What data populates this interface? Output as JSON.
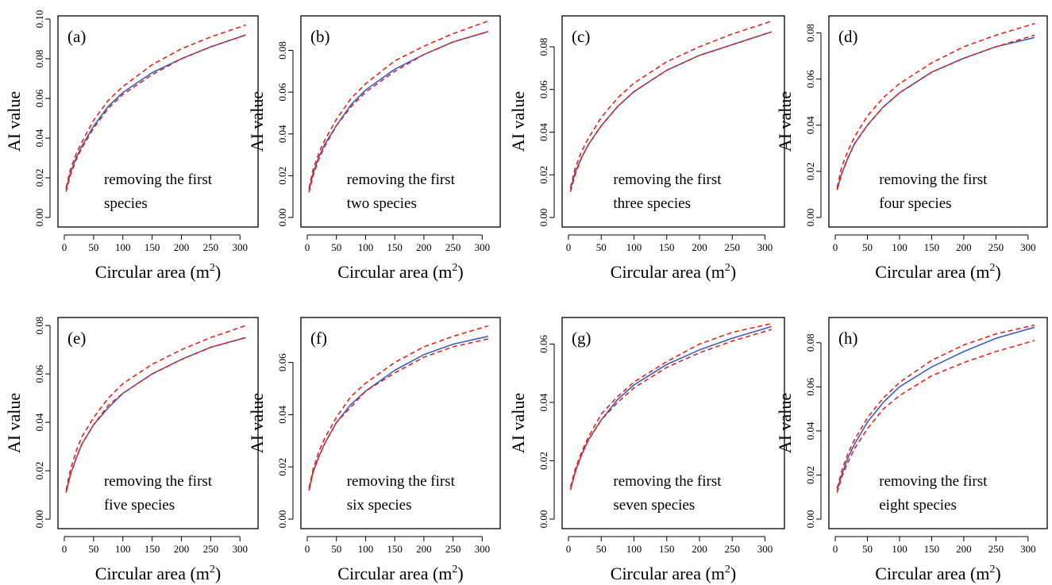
{
  "figure": {
    "xlabel": "Circular area (m",
    "xlabel_sup": "2",
    "xlabel_close": ")",
    "ylabel": "AI value"
  },
  "chart_data": [
    {
      "type": "line",
      "panel_label": "(a)",
      "annotation": [
        "removing the first",
        "species"
      ],
      "xlim": [
        0,
        320
      ],
      "ylim": [
        0,
        0.1
      ],
      "xticks": [
        0,
        50,
        100,
        150,
        200,
        250,
        300
      ],
      "yticks": [
        0,
        0.02,
        0.04,
        0.06,
        0.08,
        0.1
      ],
      "ytick_labels": [
        "0.00",
        "0.02",
        "0.04",
        "0.06",
        "0.08",
        "0.10"
      ],
      "x": [
        3,
        10,
        20,
        30,
        50,
        75,
        100,
        150,
        200,
        250,
        310
      ],
      "series": [
        {
          "color": "#3b5fc0",
          "style": "solid",
          "values": [
            0.014,
            0.022,
            0.03,
            0.036,
            0.046,
            0.056,
            0.063,
            0.073,
            0.08,
            0.086,
            0.092
          ]
        },
        {
          "color": "#e8231b",
          "style": "dashed",
          "values": [
            0.015,
            0.024,
            0.032,
            0.038,
            0.049,
            0.059,
            0.066,
            0.077,
            0.085,
            0.091,
            0.097
          ]
        },
        {
          "color": "#e8231b",
          "style": "dashed",
          "values": [
            0.013,
            0.021,
            0.029,
            0.035,
            0.045,
            0.055,
            0.062,
            0.072,
            0.08,
            0.086,
            0.092
          ]
        }
      ]
    },
    {
      "type": "line",
      "panel_label": "(b)",
      "annotation": [
        "removing the first",
        "two species"
      ],
      "xlim": [
        0,
        320
      ],
      "ylim": [
        0,
        0.095
      ],
      "xticks": [
        0,
        50,
        100,
        150,
        200,
        250,
        300
      ],
      "yticks": [
        0,
        0.02,
        0.04,
        0.06,
        0.08
      ],
      "ytick_labels": [
        "0.00",
        "0.02",
        "0.04",
        "0.06",
        "0.08"
      ],
      "x": [
        3,
        10,
        20,
        30,
        50,
        75,
        100,
        150,
        200,
        250,
        310
      ],
      "series": [
        {
          "color": "#3b5fc0",
          "style": "solid",
          "values": [
            0.013,
            0.021,
            0.029,
            0.035,
            0.044,
            0.054,
            0.061,
            0.071,
            0.078,
            0.084,
            0.089
          ]
        },
        {
          "color": "#e8231b",
          "style": "dashed",
          "values": [
            0.014,
            0.023,
            0.031,
            0.037,
            0.047,
            0.057,
            0.064,
            0.075,
            0.082,
            0.088,
            0.094
          ]
        },
        {
          "color": "#e8231b",
          "style": "dashed",
          "values": [
            0.012,
            0.02,
            0.028,
            0.034,
            0.044,
            0.053,
            0.06,
            0.07,
            0.078,
            0.084,
            0.089
          ]
        }
      ]
    },
    {
      "type": "line",
      "panel_label": "(c)",
      "annotation": [
        "removing the first",
        "three species"
      ],
      "xlim": [
        0,
        320
      ],
      "ylim": [
        0,
        0.093
      ],
      "xticks": [
        0,
        50,
        100,
        150,
        200,
        250,
        300
      ],
      "yticks": [
        0,
        0.02,
        0.04,
        0.06,
        0.08
      ],
      "ytick_labels": [
        "0.00",
        "0.02",
        "0.04",
        "0.06",
        "0.08"
      ],
      "x": [
        3,
        10,
        20,
        30,
        50,
        75,
        100,
        150,
        200,
        250,
        310
      ],
      "series": [
        {
          "color": "#3b5fc0",
          "style": "solid",
          "values": [
            0.013,
            0.021,
            0.028,
            0.034,
            0.043,
            0.052,
            0.059,
            0.069,
            0.076,
            0.081,
            0.087
          ]
        },
        {
          "color": "#e8231b",
          "style": "dashed",
          "values": [
            0.014,
            0.023,
            0.031,
            0.037,
            0.047,
            0.056,
            0.063,
            0.073,
            0.08,
            0.086,
            0.092
          ]
        },
        {
          "color": "#e8231b",
          "style": "dashed",
          "values": [
            0.012,
            0.02,
            0.028,
            0.034,
            0.043,
            0.052,
            0.059,
            0.069,
            0.076,
            0.081,
            0.087
          ]
        }
      ]
    },
    {
      "type": "line",
      "panel_label": "(d)",
      "annotation": [
        "removing the first",
        "four species"
      ],
      "xlim": [
        0,
        320
      ],
      "ylim": [
        0,
        0.086
      ],
      "xticks": [
        0,
        50,
        100,
        150,
        200,
        250,
        300
      ],
      "yticks": [
        0,
        0.02,
        0.04,
        0.06,
        0.08
      ],
      "ytick_labels": [
        "0.00",
        "0.02",
        "0.04",
        "0.06",
        "0.08"
      ],
      "x": [
        3,
        10,
        20,
        30,
        50,
        75,
        100,
        150,
        200,
        250,
        310
      ],
      "series": [
        {
          "color": "#3b5fc0",
          "style": "solid",
          "values": [
            0.012,
            0.019,
            0.026,
            0.032,
            0.04,
            0.048,
            0.054,
            0.063,
            0.069,
            0.074,
            0.078
          ]
        },
        {
          "color": "#e8231b",
          "style": "dashed",
          "values": [
            0.013,
            0.022,
            0.029,
            0.035,
            0.044,
            0.052,
            0.058,
            0.067,
            0.074,
            0.079,
            0.084
          ]
        },
        {
          "color": "#e8231b",
          "style": "dashed",
          "values": [
            0.012,
            0.019,
            0.026,
            0.032,
            0.04,
            0.048,
            0.054,
            0.063,
            0.069,
            0.074,
            0.079
          ]
        }
      ]
    },
    {
      "type": "line",
      "panel_label": "(e)",
      "annotation": [
        "removing the first",
        "five species"
      ],
      "xlim": [
        0,
        320
      ],
      "ylim": [
        0,
        0.082
      ],
      "xticks": [
        0,
        50,
        100,
        150,
        200,
        250,
        300
      ],
      "yticks": [
        0,
        0.02,
        0.04,
        0.06,
        0.08
      ],
      "ytick_labels": [
        "0.00",
        "0.02",
        "0.04",
        "0.06",
        "0.08"
      ],
      "x": [
        3,
        10,
        20,
        30,
        50,
        75,
        100,
        150,
        200,
        250,
        310
      ],
      "series": [
        {
          "color": "#3b5fc0",
          "style": "solid",
          "values": [
            0.011,
            0.018,
            0.025,
            0.031,
            0.039,
            0.046,
            0.052,
            0.06,
            0.066,
            0.071,
            0.075
          ]
        },
        {
          "color": "#e8231b",
          "style": "dashed",
          "values": [
            0.012,
            0.02,
            0.028,
            0.034,
            0.042,
            0.05,
            0.056,
            0.064,
            0.07,
            0.075,
            0.08
          ]
        },
        {
          "color": "#e8231b",
          "style": "dashed",
          "values": [
            0.011,
            0.018,
            0.025,
            0.031,
            0.039,
            0.047,
            0.052,
            0.06,
            0.066,
            0.071,
            0.075
          ]
        }
      ]
    },
    {
      "type": "line",
      "panel_label": "(f)",
      "annotation": [
        "removing the first",
        "six species"
      ],
      "xlim": [
        0,
        320
      ],
      "ylim": [
        0,
        0.076
      ],
      "xticks": [
        0,
        50,
        100,
        150,
        200,
        250,
        300
      ],
      "yticks": [
        0,
        0.02,
        0.04,
        0.06
      ],
      "ytick_labels": [
        "0.00",
        "0.02",
        "0.04",
        "0.06"
      ],
      "x": [
        3,
        10,
        20,
        30,
        50,
        75,
        100,
        150,
        200,
        250,
        310
      ],
      "series": [
        {
          "color": "#3b5fc0",
          "style": "solid",
          "values": [
            0.011,
            0.018,
            0.024,
            0.029,
            0.037,
            0.044,
            0.049,
            0.057,
            0.063,
            0.067,
            0.07
          ]
        },
        {
          "color": "#e8231b",
          "style": "dashed",
          "values": [
            0.012,
            0.019,
            0.026,
            0.031,
            0.039,
            0.047,
            0.052,
            0.06,
            0.066,
            0.07,
            0.074
          ]
        },
        {
          "color": "#e8231b",
          "style": "dashed",
          "values": [
            0.011,
            0.018,
            0.024,
            0.029,
            0.037,
            0.043,
            0.049,
            0.056,
            0.062,
            0.066,
            0.069
          ]
        }
      ]
    },
    {
      "type": "line",
      "panel_label": "(g)",
      "annotation": [
        "removing the first",
        "seven species"
      ],
      "xlim": [
        0,
        320
      ],
      "ylim": [
        0,
        0.068
      ],
      "xticks": [
        0,
        50,
        100,
        150,
        200,
        250,
        300
      ],
      "yticks": [
        0,
        0.02,
        0.04,
        0.06
      ],
      "ytick_labels": [
        "0.00",
        "0.02",
        "0.04",
        "0.06"
      ],
      "x": [
        3,
        10,
        20,
        30,
        50,
        75,
        100,
        150,
        200,
        250,
        310
      ],
      "series": [
        {
          "color": "#3b5fc0",
          "style": "solid",
          "values": [
            0.01,
            0.016,
            0.022,
            0.027,
            0.034,
            0.041,
            0.046,
            0.053,
            0.058,
            0.062,
            0.066
          ]
        },
        {
          "color": "#e8231b",
          "style": "dashed",
          "values": [
            0.011,
            0.017,
            0.023,
            0.028,
            0.036,
            0.042,
            0.047,
            0.054,
            0.06,
            0.064,
            0.067
          ]
        },
        {
          "color": "#e8231b",
          "style": "dashed",
          "values": [
            0.01,
            0.016,
            0.022,
            0.027,
            0.034,
            0.04,
            0.045,
            0.052,
            0.057,
            0.061,
            0.065
          ]
        }
      ]
    },
    {
      "type": "line",
      "panel_label": "(h)",
      "annotation": [
        "removing the first",
        "eight species"
      ],
      "xlim": [
        0,
        320
      ],
      "ylim": [
        0,
        0.09
      ],
      "xticks": [
        0,
        50,
        100,
        150,
        200,
        250,
        300
      ],
      "yticks": [
        0,
        0.02,
        0.04,
        0.06,
        0.08
      ],
      "ytick_labels": [
        "0.00",
        "0.02",
        "0.04",
        "0.06",
        "0.08"
      ],
      "x": [
        3,
        10,
        20,
        30,
        50,
        75,
        100,
        150,
        200,
        250,
        310
      ],
      "series": [
        {
          "color": "#3b5fc0",
          "style": "solid",
          "values": [
            0.013,
            0.02,
            0.028,
            0.034,
            0.044,
            0.053,
            0.06,
            0.069,
            0.076,
            0.082,
            0.087
          ]
        },
        {
          "color": "#e8231b",
          "style": "dashed",
          "values": [
            0.014,
            0.022,
            0.03,
            0.036,
            0.046,
            0.055,
            0.062,
            0.072,
            0.079,
            0.084,
            0.088
          ]
        },
        {
          "color": "#e8231b",
          "style": "dashed",
          "values": [
            0.012,
            0.019,
            0.026,
            0.032,
            0.041,
            0.05,
            0.056,
            0.065,
            0.071,
            0.076,
            0.081
          ]
        }
      ]
    }
  ]
}
